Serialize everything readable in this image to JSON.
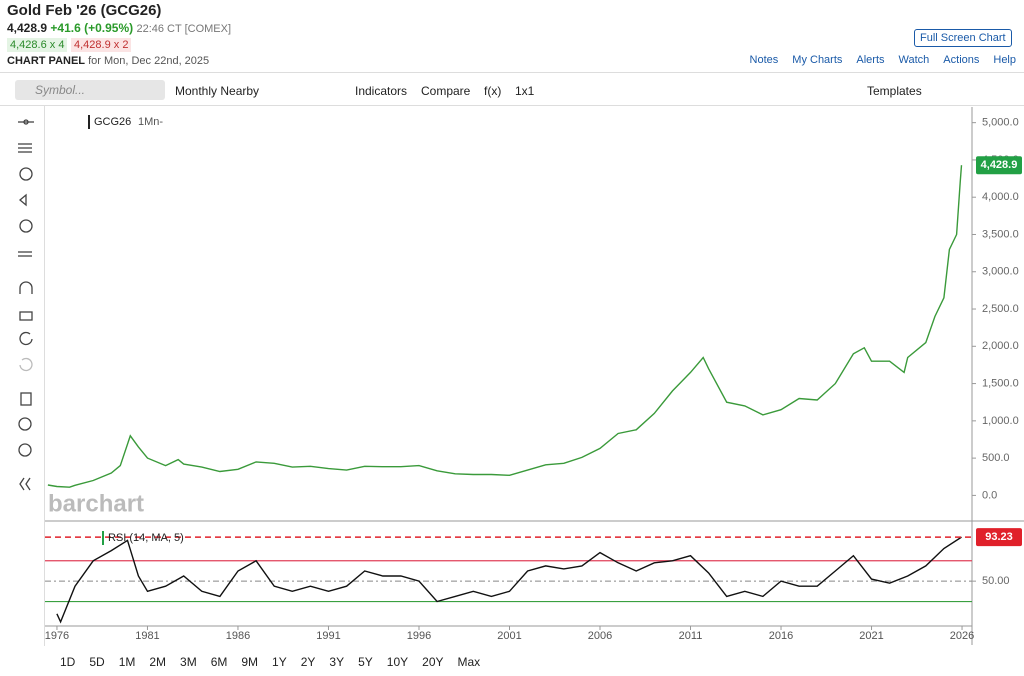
{
  "header": {
    "title": "Gold Feb '26 (GCG26)",
    "price": "4,428.9",
    "change": "+41.6 (+0.95%)",
    "time": "22:46 CT [COMEX]",
    "bid": "4,428.6 x 4",
    "ask": "4,428.9 x 2",
    "panel_label": "CHART PANEL",
    "panel_date": "for Mon, Dec 22nd, 2025",
    "full_screen": "Full Screen Chart"
  },
  "links": [
    "Notes",
    "My Charts",
    "Alerts",
    "Watch",
    "Actions",
    "Help"
  ],
  "toolbar": {
    "search": "Symbol...",
    "interval": "Monthly Nearby",
    "indicators": "Indicators",
    "compare": "Compare",
    "fx": "f(x)",
    "layout": "1x1",
    "templates": "Templates"
  },
  "ranges": [
    "1D",
    "5D",
    "1M",
    "2M",
    "3M",
    "6M",
    "9M",
    "1Y",
    "2Y",
    "3Y",
    "5Y",
    "10Y",
    "20Y",
    "Max"
  ],
  "watermark": "barchart",
  "chart_data": [
    {
      "type": "line",
      "interval": "1Mn-",
      "last_label": "4,428.9",
      "x": [
        1975.5,
        1976,
        1976.7,
        1977,
        1978,
        1979,
        1979.5,
        1980.05,
        1980.5,
        1981,
        1982,
        1982.7,
        1983,
        1984,
        1985,
        1986,
        1987,
        1988,
        1989,
        1990,
        1991,
        1992,
        1993,
        1994,
        1995,
        1996,
        1997,
        1998,
        1999,
        2000,
        2001,
        2002,
        2003,
        2004,
        2005,
        2006,
        2007,
        2008,
        2009,
        2010,
        2011,
        2011.7,
        2012,
        2013,
        2014,
        2015,
        2016,
        2017,
        2018,
        2019,
        2020,
        2020.6,
        2021,
        2022,
        2022.8,
        2023,
        2024,
        2024.5,
        2025,
        2025.3,
        2025.7,
        2025.9,
        2025.97
      ],
      "series": [
        {
          "name": "GCG26",
          "color": "#3a9a3a",
          "values": [
            140,
            120,
            110,
            135,
            200,
            300,
            400,
            800,
            650,
            500,
            400,
            480,
            420,
            380,
            320,
            350,
            450,
            430,
            380,
            390,
            360,
            340,
            390,
            385,
            385,
            400,
            330,
            290,
            280,
            280,
            270,
            340,
            410,
            430,
            510,
            630,
            830,
            880,
            1100,
            1400,
            1650,
            1850,
            1700,
            1250,
            1200,
            1080,
            1150,
            1300,
            1280,
            1500,
            1900,
            1980,
            1800,
            1800,
            1650,
            1850,
            2050,
            2400,
            2650,
            3300,
            3500,
            4200,
            4428.9
          ]
        }
      ],
      "xlim": [
        1975.34,
        2026.55
      ],
      "xticks": [
        1976,
        1981,
        1986,
        1991,
        1996,
        2001,
        2006,
        2011,
        2016,
        2021,
        2026
      ],
      "ylim": [
        -330,
        5210
      ],
      "yticks": [
        {
          "value": 0,
          "label": "0.0"
        },
        {
          "value": 500,
          "label": "500.0"
        },
        {
          "value": 1000,
          "label": "1,000.0"
        },
        {
          "value": 1500,
          "label": "1,500.0"
        },
        {
          "value": 2000,
          "label": "2,000.0"
        },
        {
          "value": 2500,
          "label": "2,500.0"
        },
        {
          "value": 3000,
          "label": "3,000.0"
        },
        {
          "value": 3500,
          "label": "3,500.0"
        },
        {
          "value": 4000,
          "label": "4,000.0"
        },
        {
          "value": 4500,
          "label": "4,500.0"
        },
        {
          "value": 5000,
          "label": "5,000.0"
        }
      ]
    },
    {
      "type": "line",
      "last_label": "93.23",
      "x": [
        1976,
        1976.2,
        1977,
        1978,
        1979,
        1979.9,
        1980.5,
        1981,
        1982,
        1983,
        1984,
        1985,
        1986,
        1987,
        1988,
        1989,
        1990,
        1991,
        1992,
        1993,
        1994,
        1995,
        1996,
        1997,
        1998,
        1999,
        2000,
        2001,
        2002,
        2003,
        2004,
        2005,
        2006,
        2007,
        2008,
        2009,
        2010,
        2011,
        2012,
        2013,
        2014,
        2015,
        2016,
        2017,
        2018,
        2019,
        2020,
        2021,
        2022,
        2023,
        2024,
        2025,
        2025.97
      ],
      "series": [
        {
          "name": "RSI (14, MA, 5)",
          "color": "#111111",
          "values": [
            18,
            10,
            45,
            70,
            80,
            90,
            55,
            40,
            45,
            55,
            40,
            35,
            60,
            70,
            45,
            40,
            45,
            40,
            45,
            60,
            55,
            55,
            50,
            30,
            35,
            40,
            35,
            40,
            60,
            65,
            62,
            65,
            78,
            68,
            60,
            68,
            70,
            75,
            58,
            35,
            40,
            35,
            50,
            45,
            45,
            60,
            75,
            52,
            48,
            55,
            65,
            82,
            93.23
          ]
        }
      ],
      "levels": [
        {
          "value": 70,
          "color": "#e0405a"
        },
        {
          "value": 30,
          "color": "#3aa040"
        }
      ],
      "xlim": [
        1975.34,
        2026.55
      ],
      "ylim": [
        7,
        108
      ],
      "yticks": [
        {
          "value": 50,
          "label": "50.00"
        }
      ]
    }
  ]
}
